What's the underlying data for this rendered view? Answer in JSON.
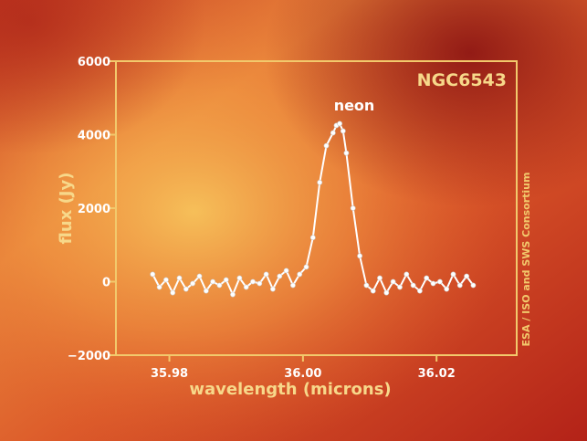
{
  "colors": {
    "frame": "#f2c96c",
    "labels": "#f7d88a",
    "series": "#ffffff",
    "background_warm": "#f4a64a",
    "background_deep": "#b32218"
  },
  "chart_data": {
    "type": "line",
    "title": "NGC6543",
    "annotation": "neon",
    "xlabel": "wavelength (microns)",
    "ylabel": "flux (Jy)",
    "credit": "ESA / ISO and SWS Consortium",
    "xlim": [
      35.972,
      36.032
    ],
    "ylim": [
      -2000,
      6000
    ],
    "xticks": [
      35.98,
      36.0,
      36.02
    ],
    "xtick_labels": [
      "35.98",
      "36.00",
      "36.02"
    ],
    "yticks": [
      -2000,
      0,
      2000,
      4000,
      6000
    ],
    "ytick_labels": [
      "−2000",
      "0",
      "2000",
      "4000",
      "6000"
    ],
    "grid": false,
    "series": [
      {
        "x": [
          35.9775,
          35.9785,
          35.9795,
          35.9805,
          35.9815,
          35.9825,
          35.9835,
          35.9845,
          35.9855,
          35.9865,
          35.9875,
          35.9885,
          35.9895,
          35.9905,
          35.9915,
          35.9925,
          35.9935,
          35.9945,
          35.9955,
          35.9965,
          35.9975,
          35.9985,
          35.9995,
          36.0005,
          36.0015,
          36.0025,
          36.0035,
          36.0045,
          36.005,
          36.0055,
          36.006,
          36.0065,
          36.0075,
          36.0085,
          36.0095,
          36.0105,
          36.0115,
          36.0125,
          36.0135,
          36.0145,
          36.0155,
          36.0165,
          36.0175,
          36.0185,
          36.0195,
          36.0205,
          36.0215,
          36.0225,
          36.0235,
          36.0245,
          36.0255
        ],
        "y": [
          200,
          -150,
          50,
          -300,
          100,
          -200,
          -50,
          150,
          -250,
          0,
          -100,
          50,
          -350,
          100,
          -150,
          0,
          -50,
          200,
          -200,
          150,
          300,
          -100,
          200,
          400,
          1200,
          2700,
          3700,
          4050,
          4250,
          4300,
          4100,
          3500,
          2000,
          700,
          -100,
          -250,
          100,
          -300,
          0,
          -150,
          200,
          -100,
          -250,
          100,
          -50,
          0,
          -200,
          200,
          -100,
          150,
          -100
        ]
      }
    ]
  }
}
